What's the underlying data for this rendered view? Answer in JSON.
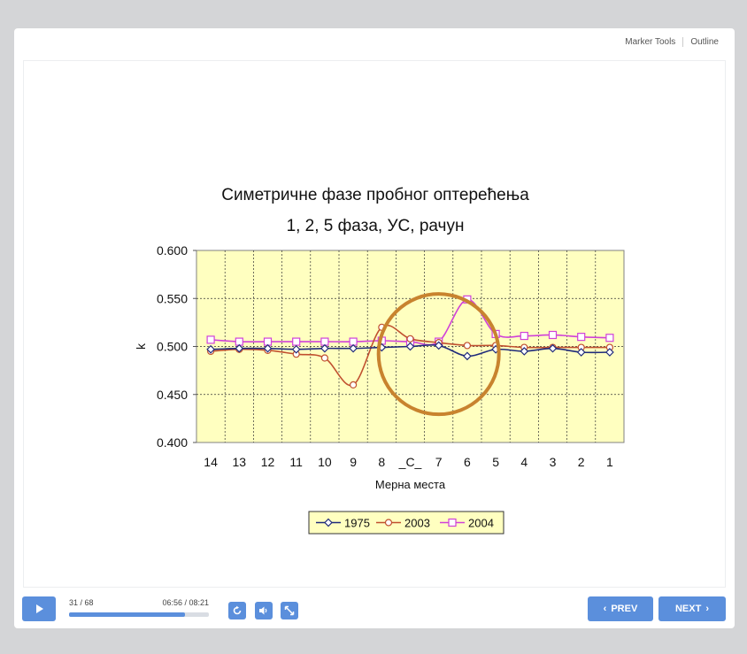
{
  "topbar": {
    "marker_tools": "Marker Tools",
    "outline": "Outline"
  },
  "controls": {
    "slide_counter": "31 / 68",
    "time": "06:56 / 08:21",
    "progress": 0.83,
    "prev_label": "PREV",
    "next_label": "NEXT"
  },
  "chart_data": {
    "type": "line",
    "title": "Симетричне фазе пробног оптерећења",
    "subtitle": "1, 2, 5 фаза, УС, рачун",
    "xlabel": "Мерна места",
    "ylabel": "k",
    "categories": [
      "14",
      "13",
      "12",
      "11",
      "10",
      "9",
      "8",
      "_C_",
      "7",
      "6",
      "5",
      "4",
      "3",
      "2",
      "1"
    ],
    "ylim": [
      0.4,
      0.6
    ],
    "yticks": [
      "0.600",
      "0.550",
      "0.500",
      "0.450",
      "0.400"
    ],
    "grid": true,
    "legend_position": "bottom",
    "series": [
      {
        "name": "1975",
        "color": "#1f2a7a",
        "marker": "diamond",
        "values": [
          0.497,
          0.498,
          0.498,
          0.497,
          0.498,
          0.498,
          0.499,
          0.5,
          0.501,
          0.49,
          0.497,
          0.495,
          0.498,
          0.494,
          0.494
        ]
      },
      {
        "name": "2003",
        "color": "#c0502f",
        "marker": "circle",
        "values": [
          0.495,
          0.497,
          0.496,
          0.492,
          0.488,
          0.46,
          0.52,
          0.508,
          0.504,
          0.501,
          0.501,
          0.499,
          0.499,
          0.499,
          0.499
        ]
      },
      {
        "name": "2004",
        "color": "#d040d8",
        "marker": "square",
        "values": [
          0.507,
          0.505,
          0.505,
          0.505,
          0.505,
          0.505,
          0.506,
          0.505,
          0.505,
          0.549,
          0.513,
          0.511,
          0.512,
          0.51,
          0.509
        ]
      }
    ],
    "annotation": {
      "shape": "circle",
      "color": "#c8832e",
      "center_category": "8.5",
      "center_value": 0.492
    }
  }
}
